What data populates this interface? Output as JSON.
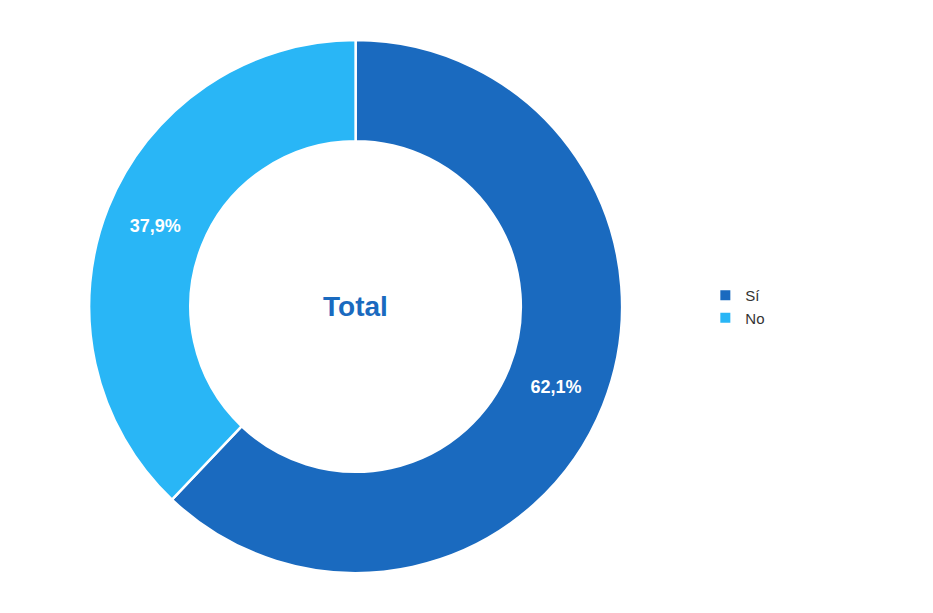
{
  "chart_data": {
    "type": "donut",
    "categories": [
      "Sí",
      "No"
    ],
    "values": [
      62.1,
      37.9
    ],
    "value_labels": [
      "62,1%",
      "37,9%"
    ],
    "colors": [
      "#1a6abf",
      "#29b6f6"
    ],
    "data_labels": true,
    "legend": "right",
    "annotations": [
      {
        "text": "Total",
        "color": "#1a6abf"
      }
    ]
  }
}
